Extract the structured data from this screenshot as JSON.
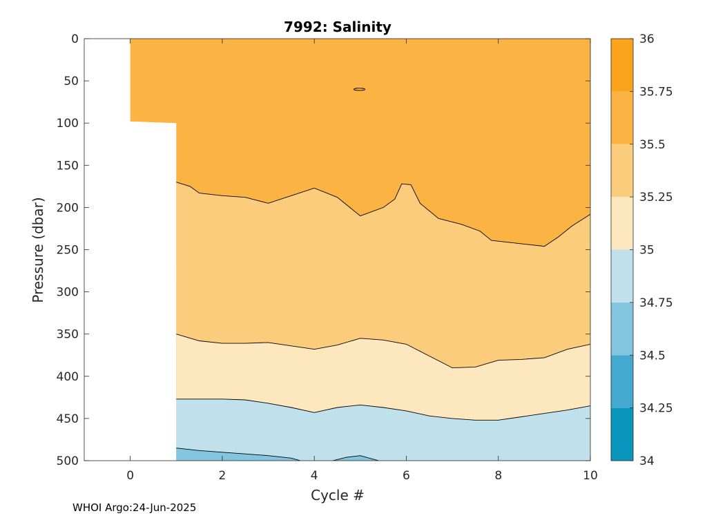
{
  "chart_data": {
    "type": "contour",
    "title": "7992:  Salinity",
    "xlabel": "Cycle #",
    "ylabel": "Pressure (dbar)",
    "xlim": [
      -1,
      10
    ],
    "ylim": [
      500,
      0
    ],
    "y_reversed": true,
    "xticks": [
      0,
      2,
      4,
      6,
      8,
      10
    ],
    "yticks": [
      0,
      50,
      100,
      150,
      200,
      250,
      300,
      350,
      400,
      450,
      500
    ],
    "colorbar": {
      "range": [
        34,
        36
      ],
      "ticks": [
        34,
        34.25,
        34.5,
        34.75,
        35,
        35.25,
        35.5,
        35.75,
        36
      ],
      "tick_labels": [
        "34",
        "34.25",
        "34.5",
        "34.75",
        "35",
        "35.25",
        "35.5",
        "35.75",
        "36"
      ],
      "colors": [
        "#0a95bf",
        "#43a9cf",
        "#83c5de",
        "#c0e1eb",
        "#fce7bf",
        "#fbcc7b",
        "#fbb444",
        "#fca31e"
      ]
    },
    "data_coverage": {
      "cycle_0_max_pressure": 98,
      "first_full_cycle": 1
    },
    "contours": [
      {
        "level": 35.5,
        "points": [
          [
            1,
            170
          ],
          [
            1.3,
            175
          ],
          [
            1.5,
            183
          ],
          [
            2,
            186
          ],
          [
            2.5,
            188
          ],
          [
            3,
            195
          ],
          [
            3.5,
            186
          ],
          [
            4,
            177
          ],
          [
            4.5,
            188
          ],
          [
            5,
            210
          ],
          [
            5.5,
            200
          ],
          [
            5.75,
            190
          ],
          [
            5.9,
            172
          ],
          [
            6.1,
            173
          ],
          [
            6.3,
            195
          ],
          [
            6.7,
            213
          ],
          [
            7.2,
            220
          ],
          [
            7.6,
            228
          ],
          [
            7.85,
            239
          ],
          [
            8.5,
            243
          ],
          [
            9,
            246
          ],
          [
            9.3,
            235
          ],
          [
            9.6,
            222
          ],
          [
            10,
            208
          ]
        ]
      },
      {
        "level": 35.25,
        "points": [
          [
            1,
            350
          ],
          [
            1.5,
            358
          ],
          [
            2,
            361
          ],
          [
            2.5,
            361
          ],
          [
            3,
            360
          ],
          [
            3.5,
            364
          ],
          [
            4,
            368
          ],
          [
            4.5,
            363
          ],
          [
            5,
            355
          ],
          [
            5.5,
            357
          ],
          [
            6,
            362
          ],
          [
            6.5,
            376
          ],
          [
            7,
            390
          ],
          [
            7.5,
            389
          ],
          [
            8,
            381
          ],
          [
            8.5,
            380
          ],
          [
            9,
            378
          ],
          [
            9.5,
            368
          ],
          [
            10,
            362
          ]
        ]
      },
      {
        "level": 35.0,
        "points": [
          [
            1,
            427
          ],
          [
            1.5,
            427
          ],
          [
            2,
            427
          ],
          [
            2.5,
            428
          ],
          [
            3,
            432
          ],
          [
            3.5,
            437
          ],
          [
            4,
            443
          ],
          [
            4.5,
            437
          ],
          [
            5,
            434
          ],
          [
            5.5,
            437
          ],
          [
            6,
            441
          ],
          [
            6.5,
            447
          ],
          [
            7,
            450
          ],
          [
            7.5,
            452
          ],
          [
            8,
            452
          ],
          [
            8.5,
            448
          ],
          [
            9,
            444
          ],
          [
            9.5,
            440
          ],
          [
            10,
            435
          ]
        ]
      },
      {
        "level": 34.75,
        "points": [
          [
            1,
            485
          ],
          [
            1.5,
            488
          ],
          [
            2,
            490
          ],
          [
            2.5,
            492
          ],
          [
            3,
            494
          ],
          [
            3.5,
            497
          ],
          [
            3.7,
            500
          ]
        ]
      },
      {
        "level": 34.75,
        "points": [
          [
            4.4,
            500
          ],
          [
            4.7,
            496
          ],
          [
            5,
            494
          ],
          [
            5.4,
            500
          ]
        ]
      }
    ],
    "annotations": [
      "35.75 contour closed region near cycle 5, pressure 60"
    ]
  },
  "footer": "WHOI Argo:24-Jun-2025"
}
